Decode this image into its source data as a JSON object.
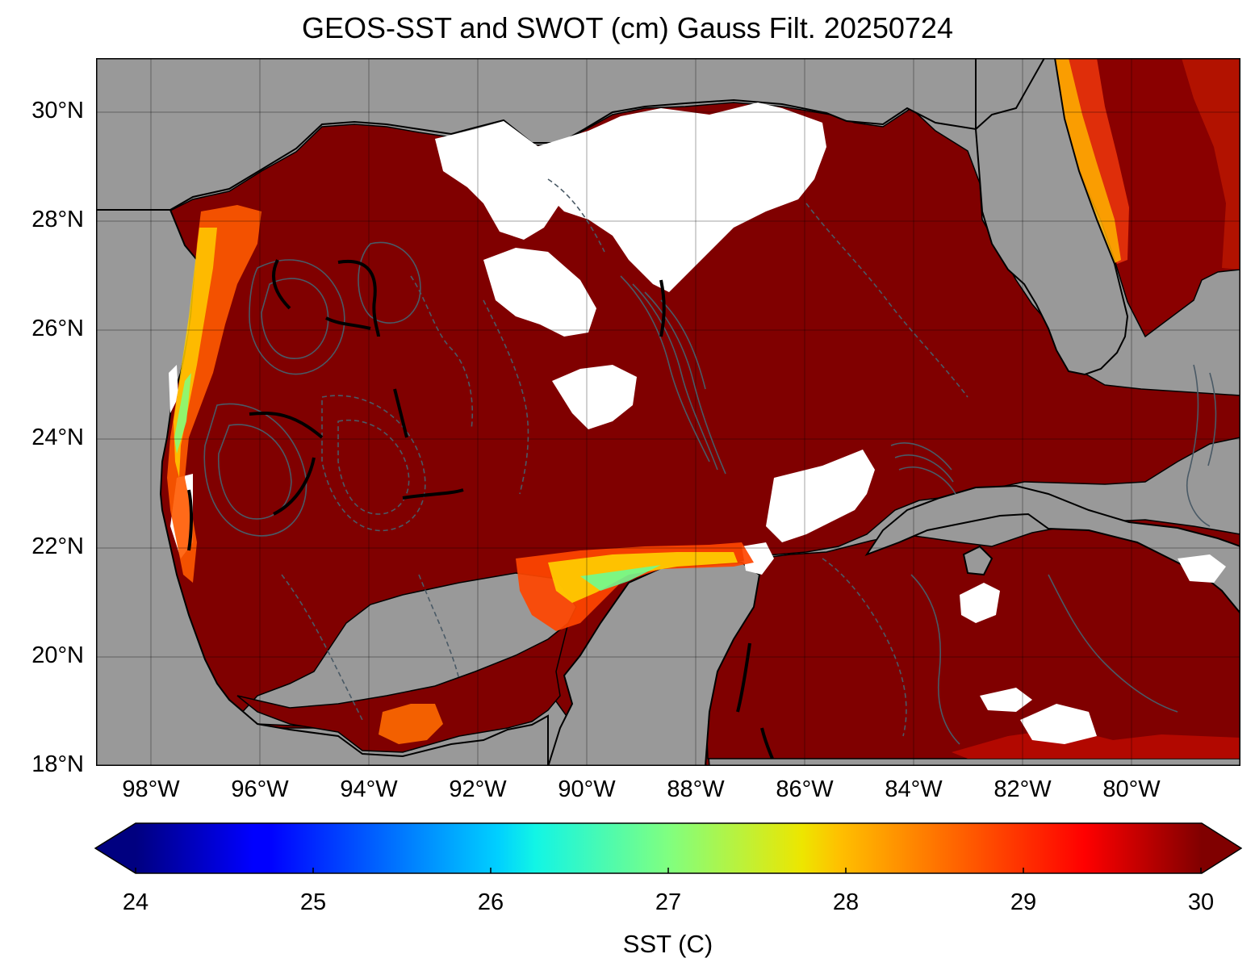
{
  "figure": {
    "title": "GEOS-SST  and SWOT (cm) Gauss Filt. 20250724"
  },
  "map": {
    "lat_labels": [
      "30°N",
      "28°N",
      "26°N",
      "24°N",
      "22°N",
      "20°N",
      "18°N"
    ],
    "lon_labels": [
      "98°W",
      "96°W",
      "94°W",
      "92°W",
      "90°W",
      "88°W",
      "86°W",
      "84°W",
      "82°W",
      "80°W"
    ],
    "land_color": "#999999",
    "ocean_sst_color": "#800000",
    "no_data_color": "#ffffff",
    "contour_color": "#4a5a66"
  },
  "colorbar": {
    "label": "SST (C)",
    "ticks": [
      "24",
      "25",
      "26",
      "27",
      "28",
      "29",
      "30"
    ],
    "min": 24,
    "max": 30,
    "extend": "both",
    "colormap": "jet"
  }
}
